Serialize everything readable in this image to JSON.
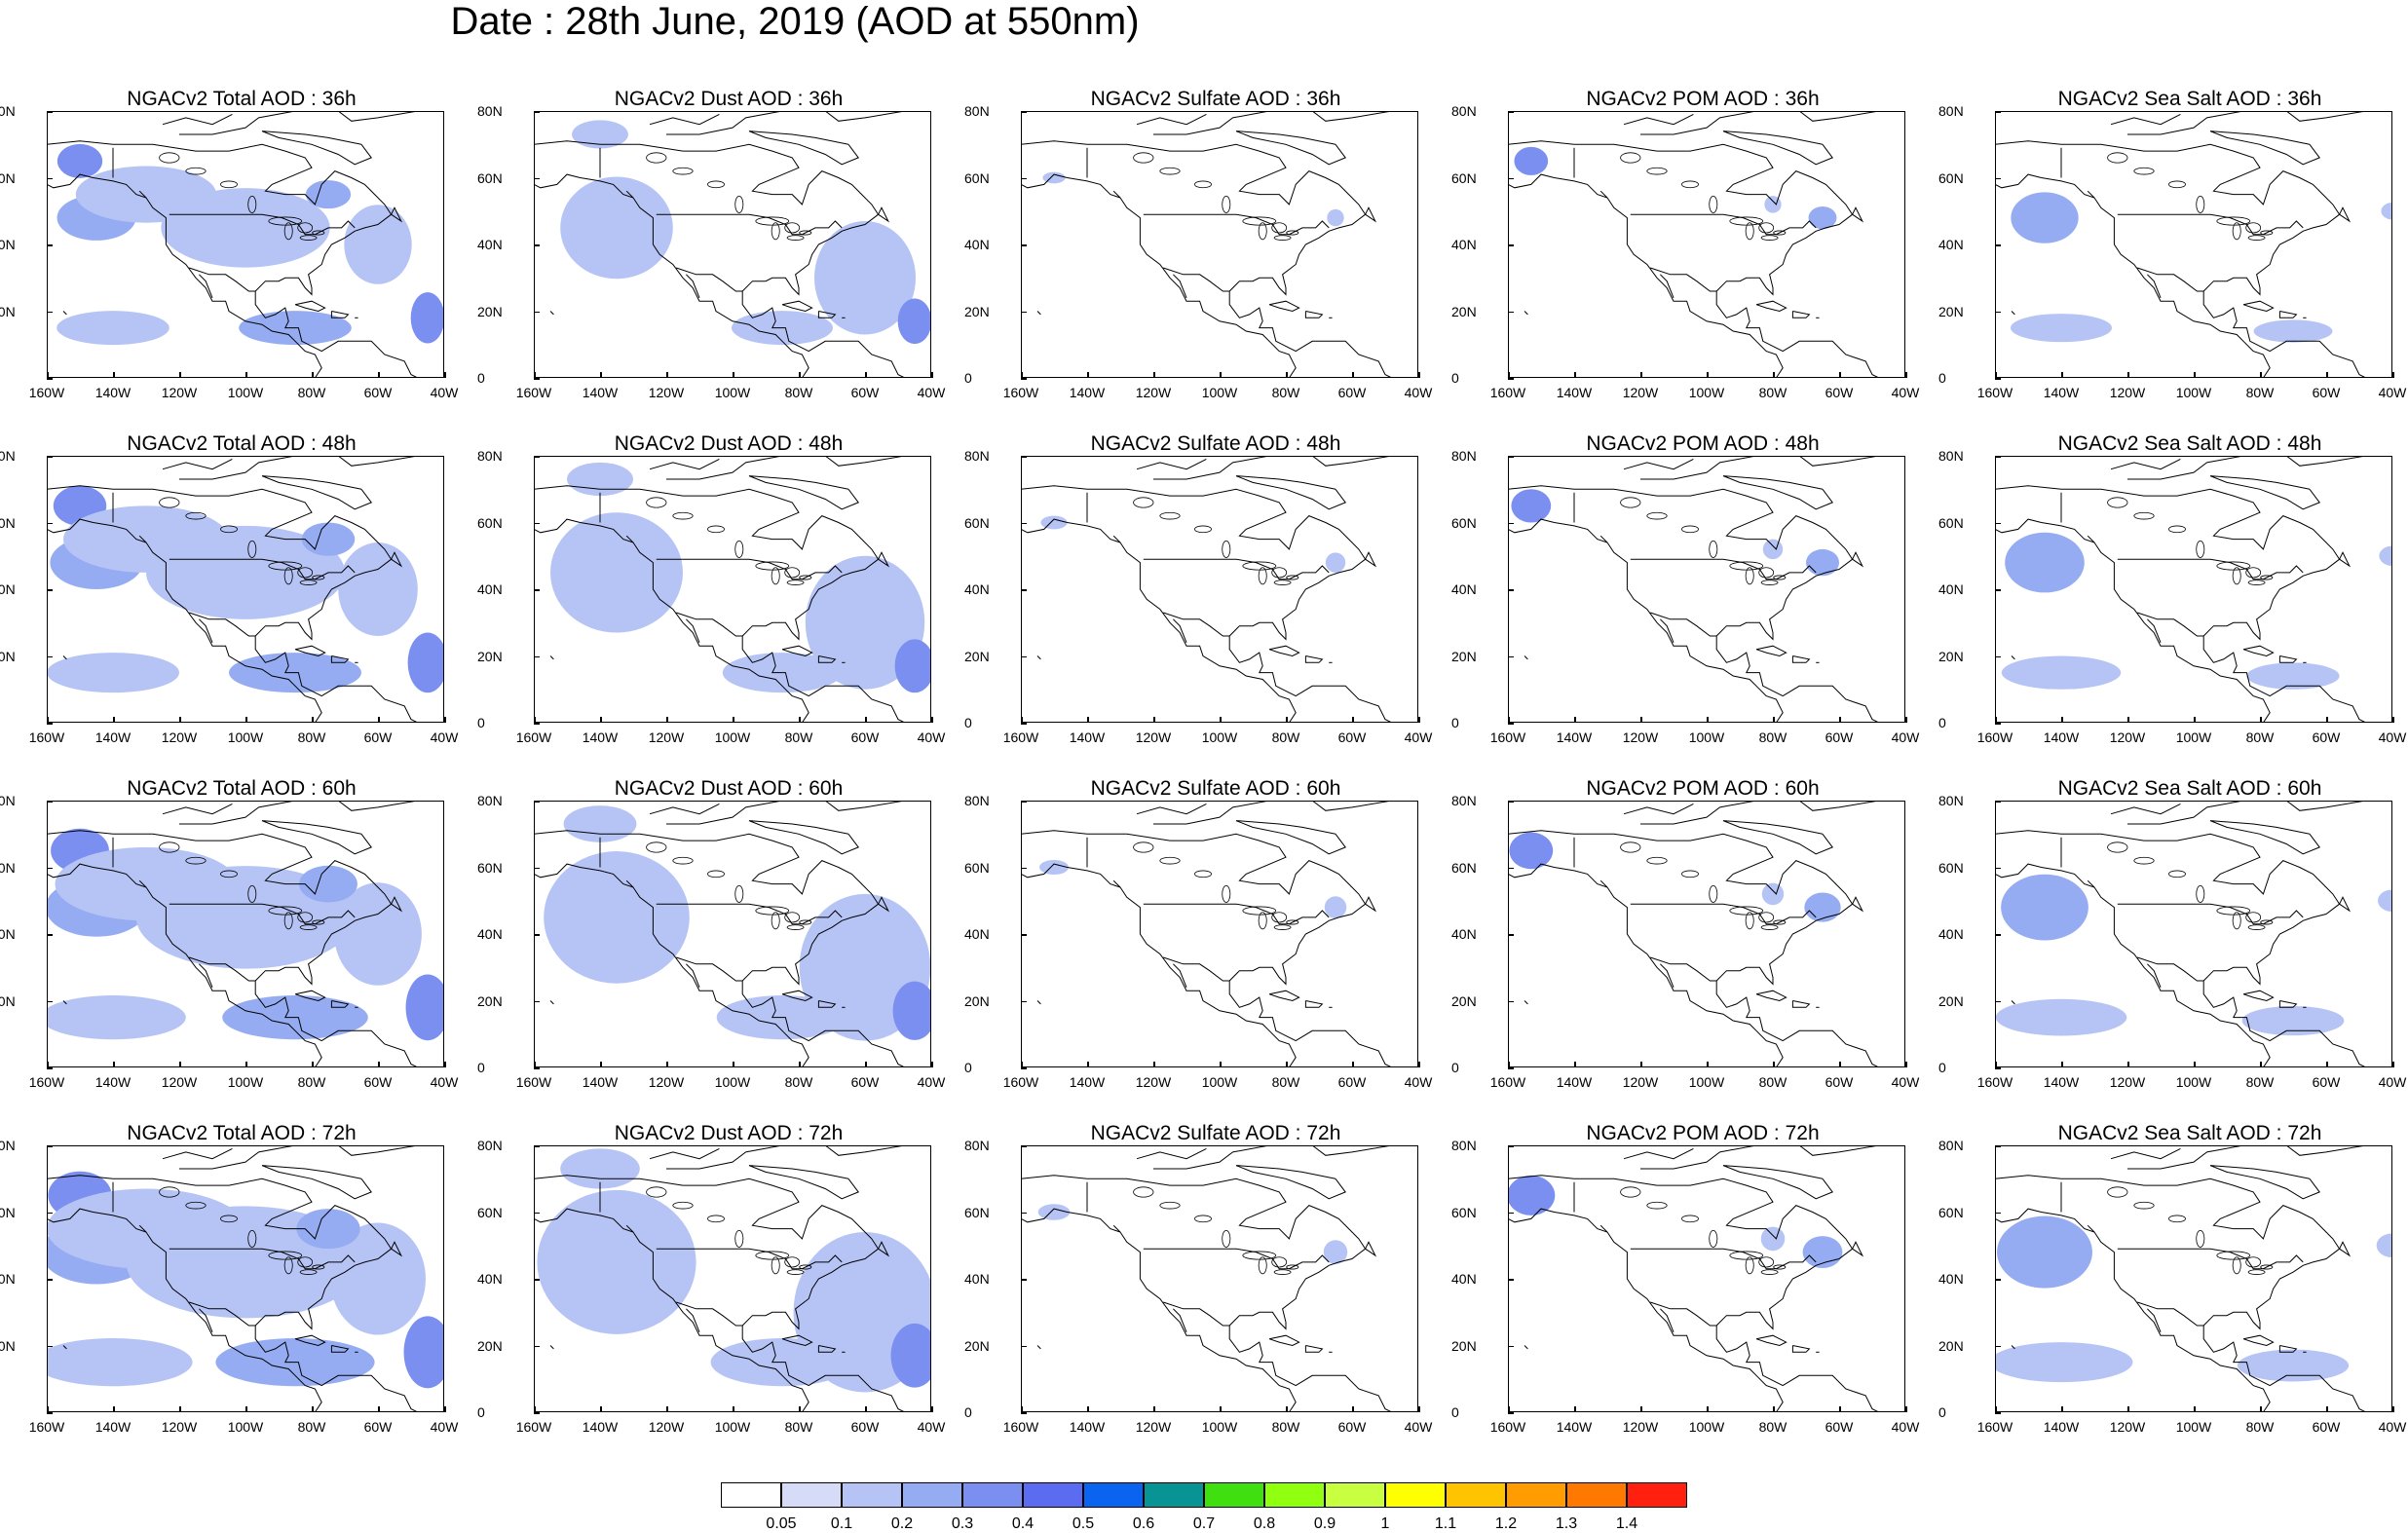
{
  "title": "Date : 28th June, 2019 (AOD at 550nm)",
  "axes": {
    "x_ticks": [
      "160W",
      "140W",
      "120W",
      "100W",
      "80W",
      "60W",
      "40W"
    ],
    "y_ticks": [
      "80N",
      "60N",
      "40N",
      "20N",
      "0"
    ]
  },
  "colorbar": {
    "labels": [
      "0.05",
      "0.1",
      "0.2",
      "0.3",
      "0.4",
      "0.5",
      "0.6",
      "0.7",
      "0.8",
      "0.9",
      "1",
      "1.1",
      "1.2",
      "1.3",
      "1.4"
    ],
    "colors": [
      "#ffffff",
      "#d6dcf7",
      "#b6c4f5",
      "#96acf2",
      "#7a8ff0",
      "#5b6cf0",
      "#0a64f0",
      "#089494",
      "#40e010",
      "#90ff10",
      "#c8ff40",
      "#ffff00",
      "#ffc400",
      "#ff9c00",
      "#ff7800",
      "#ff2010"
    ]
  },
  "chart_data": {
    "type": "heatmap",
    "grid": {
      "rows": 4,
      "cols": 5
    },
    "variables": [
      "Total",
      "Dust",
      "Sulfate",
      "POM",
      "Sea Salt"
    ],
    "forecast_hours": [
      "36h",
      "48h",
      "60h",
      "72h"
    ],
    "xlim": [
      -160,
      -40
    ],
    "ylim": [
      0,
      80
    ],
    "panels": [
      {
        "title": "NGACv2 Total AOD : 36h",
        "variable": "Total",
        "hour": "36h"
      },
      {
        "title": "NGACv2 Dust AOD : 36h",
        "variable": "Dust",
        "hour": "36h"
      },
      {
        "title": "NGACv2 Sulfate AOD : 36h",
        "variable": "Sulfate",
        "hour": "36h"
      },
      {
        "title": "NGACv2 POM AOD : 36h",
        "variable": "POM",
        "hour": "36h"
      },
      {
        "title": "NGACv2 Sea Salt AOD : 36h",
        "variable": "Sea Salt",
        "hour": "36h"
      },
      {
        "title": "NGACv2 Total AOD : 48h",
        "variable": "Total",
        "hour": "48h"
      },
      {
        "title": "NGACv2 Dust AOD : 48h",
        "variable": "Dust",
        "hour": "48h"
      },
      {
        "title": "NGACv2 Sulfate AOD : 48h",
        "variable": "Sulfate",
        "hour": "48h"
      },
      {
        "title": "NGACv2 POM AOD : 48h",
        "variable": "POM",
        "hour": "48h"
      },
      {
        "title": "NGACv2 Sea Salt AOD : 48h",
        "variable": "Sea Salt",
        "hour": "48h"
      },
      {
        "title": "NGACv2 Total AOD : 60h",
        "variable": "Total",
        "hour": "60h"
      },
      {
        "title": "NGACv2 Dust AOD : 60h",
        "variable": "Dust",
        "hour": "60h"
      },
      {
        "title": "NGACv2 Sulfate AOD : 60h",
        "variable": "Sulfate",
        "hour": "60h"
      },
      {
        "title": "NGACv2 POM AOD : 60h",
        "variable": "POM",
        "hour": "60h"
      },
      {
        "title": "NGACv2 Sea Salt AOD : 60h",
        "variable": "Sea Salt",
        "hour": "60h"
      },
      {
        "title": "NGACv2 Total AOD : 72h",
        "variable": "Total",
        "hour": "72h"
      },
      {
        "title": "NGACv2 Dust AOD : 72h",
        "variable": "Dust",
        "hour": "72h"
      },
      {
        "title": "NGACv2 Sulfate AOD : 72h",
        "variable": "Sulfate",
        "hour": "72h"
      },
      {
        "title": "NGACv2 POM AOD : 72h",
        "variable": "POM",
        "hour": "72h"
      },
      {
        "title": "NGACv2 Sea Salt  AOD : 72h",
        "variable": "Sea Salt",
        "hour": "72h"
      }
    ],
    "aod_features": {
      "Total": [
        {
          "lon": -150,
          "lat": 65,
          "rx": 8,
          "ry": 6,
          "aod": 0.3
        },
        {
          "lon": -145,
          "lat": 48,
          "rx": 14,
          "ry": 8,
          "aod": 0.2
        },
        {
          "lon": -130,
          "lat": 55,
          "rx": 25,
          "ry": 10,
          "aod": 0.1
        },
        {
          "lon": -85,
          "lat": 15,
          "rx": 20,
          "ry": 6,
          "aod": 0.2
        },
        {
          "lon": -45,
          "lat": 18,
          "rx": 6,
          "ry": 9,
          "aod": 0.3
        },
        {
          "lon": -60,
          "lat": 40,
          "rx": 12,
          "ry": 14,
          "aod": 0.1
        },
        {
          "lon": -100,
          "lat": 45,
          "rx": 30,
          "ry": 14,
          "aod": 0.1
        },
        {
          "lon": -140,
          "lat": 15,
          "rx": 20,
          "ry": 6,
          "aod": 0.1
        },
        {
          "lon": -75,
          "lat": 55,
          "rx": 8,
          "ry": 5,
          "aod": 0.2
        }
      ],
      "Dust": [
        {
          "lon": -135,
          "lat": 45,
          "rx": 20,
          "ry": 18,
          "aod": 0.1
        },
        {
          "lon": -60,
          "lat": 30,
          "rx": 18,
          "ry": 20,
          "aod": 0.1
        },
        {
          "lon": -85,
          "lat": 15,
          "rx": 18,
          "ry": 6,
          "aod": 0.1
        },
        {
          "lon": -45,
          "lat": 17,
          "rx": 6,
          "ry": 8,
          "aod": 0.3
        },
        {
          "lon": -140,
          "lat": 73,
          "rx": 10,
          "ry": 5,
          "aod": 0.1
        }
      ],
      "Sulfate": [
        {
          "lon": -65,
          "lat": 48,
          "rx": 3,
          "ry": 3,
          "aod": 0.1
        },
        {
          "lon": -150,
          "lat": 60,
          "rx": 4,
          "ry": 2,
          "aod": 0.1
        }
      ],
      "POM": [
        {
          "lon": -153,
          "lat": 65,
          "rx": 6,
          "ry": 5,
          "aod": 0.3
        },
        {
          "lon": -65,
          "lat": 48,
          "rx": 5,
          "ry": 4,
          "aod": 0.2
        },
        {
          "lon": -80,
          "lat": 52,
          "rx": 3,
          "ry": 3,
          "aod": 0.1
        }
      ],
      "Sea Salt": [
        {
          "lon": -145,
          "lat": 48,
          "rx": 12,
          "ry": 9,
          "aod": 0.2
        },
        {
          "lon": -140,
          "lat": 15,
          "rx": 18,
          "ry": 5,
          "aod": 0.1
        },
        {
          "lon": -70,
          "lat": 14,
          "rx": 14,
          "ry": 4,
          "aod": 0.1
        },
        {
          "lon": -40,
          "lat": 50,
          "rx": 4,
          "ry": 3,
          "aod": 0.1
        }
      ]
    }
  }
}
